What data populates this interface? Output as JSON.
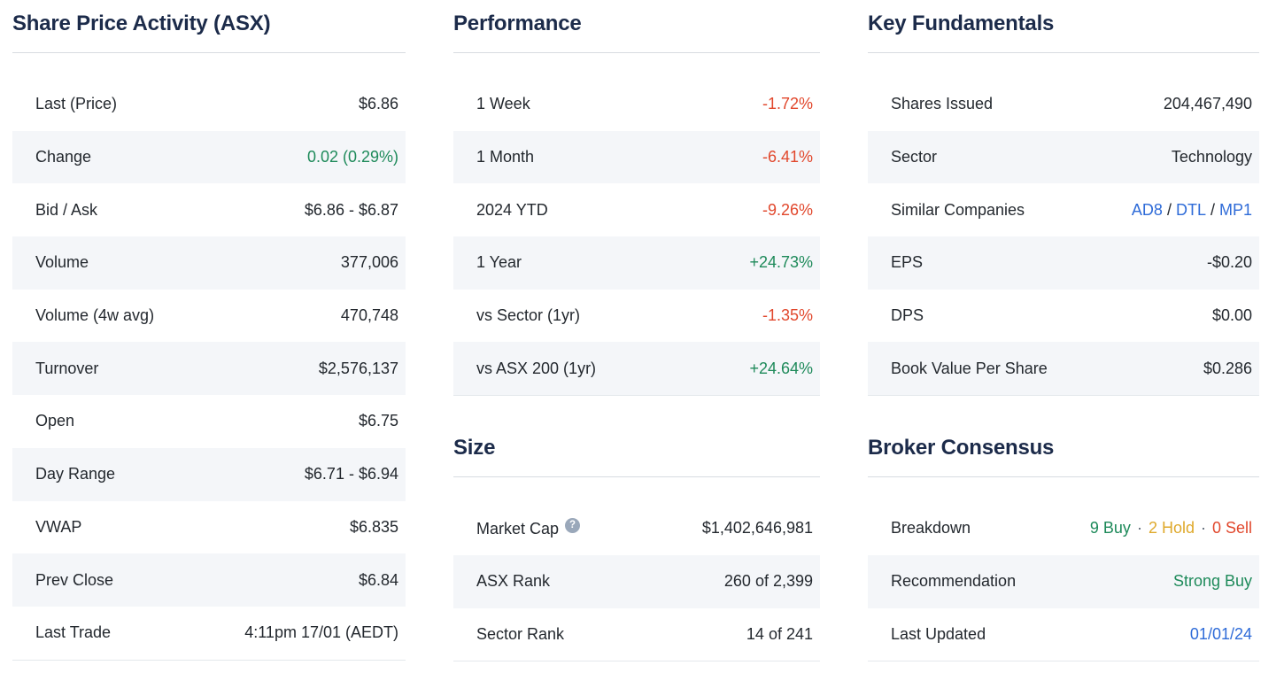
{
  "colors": {
    "heading": "#1c2b4a",
    "green": "#1e8a5a",
    "red": "#e1472c",
    "blue": "#2e6bd8",
    "gold": "#dfa92c"
  },
  "share_price": {
    "title": "Share Price Activity (ASX)",
    "rows": [
      {
        "label": "Last (Price)",
        "value": "$6.86"
      },
      {
        "label": "Change",
        "value": "0.02 (0.29%)"
      },
      {
        "label": "Bid / Ask",
        "value": "$6.86 - $6.87"
      },
      {
        "label": "Volume",
        "value": "377,006"
      },
      {
        "label": "Volume (4w avg)",
        "value": "470,748"
      },
      {
        "label": "Turnover",
        "value": "$2,576,137"
      },
      {
        "label": "Open",
        "value": "$6.75"
      },
      {
        "label": "Day Range",
        "value": "$6.71 - $6.94"
      },
      {
        "label": "VWAP",
        "value": "$6.835"
      },
      {
        "label": "Prev Close",
        "value": "$6.84"
      },
      {
        "label": "Last Trade",
        "value": "4:11pm 17/01 (AEDT)"
      }
    ]
  },
  "performance": {
    "title": "Performance",
    "rows": [
      {
        "label": "1 Week",
        "value": "-1.72%"
      },
      {
        "label": "1 Month",
        "value": "-6.41%"
      },
      {
        "label": "2024 YTD",
        "value": "-9.26%"
      },
      {
        "label": "1 Year",
        "value": "+24.73%"
      },
      {
        "label": "vs Sector (1yr)",
        "value": "-1.35%"
      },
      {
        "label": "vs ASX 200 (1yr)",
        "value": "+24.64%"
      }
    ]
  },
  "size": {
    "title": "Size",
    "help_icon": "?",
    "rows": [
      {
        "label": "Market Cap",
        "value": "$1,402,646,981"
      },
      {
        "label": "ASX Rank",
        "value": "260 of 2,399"
      },
      {
        "label": "Sector Rank",
        "value": "14 of 241"
      }
    ]
  },
  "fundamentals": {
    "title": "Key Fundamentals",
    "rows": [
      {
        "label": "Shares Issued",
        "value": "204,467,490"
      },
      {
        "label": "Sector",
        "value": "Technology"
      },
      {
        "label": "Similar Companies",
        "value": ""
      },
      {
        "label": "EPS",
        "value": "-$0.20"
      },
      {
        "label": "DPS",
        "value": "$0.00"
      },
      {
        "label": "Book Value Per Share",
        "value": "$0.286"
      }
    ],
    "similar_links": [
      "AD8",
      "DTL",
      "MP1"
    ],
    "link_separator": "/"
  },
  "broker": {
    "title": "Broker Consensus",
    "breakdown_label": "Breakdown",
    "breakdown": {
      "buy": "9 Buy",
      "hold": "2 Hold",
      "sell": "0 Sell",
      "separator": "·"
    },
    "recommendation_label": "Recommendation",
    "recommendation": "Strong Buy",
    "last_updated_label": "Last Updated",
    "last_updated": "01/01/24"
  }
}
